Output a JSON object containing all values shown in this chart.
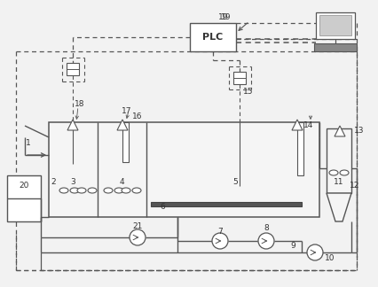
{
  "bg_color": "#f2f2f2",
  "lc": "#555555",
  "dc": "#555555",
  "fig_w": 4.26,
  "fig_h": 3.24,
  "dpi": 100
}
